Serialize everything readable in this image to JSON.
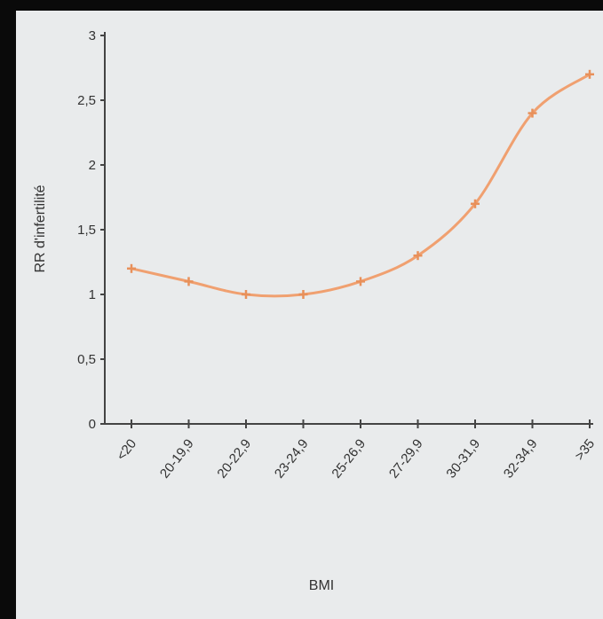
{
  "chart_data": {
    "type": "line",
    "title": "",
    "xlabel": "BMI",
    "ylabel": "RR d'infertilité",
    "categories": [
      "<20",
      "20-19,9",
      "20-22,9",
      "23-24,9",
      "25-26,9",
      "27-29,9",
      "30-31,9",
      "32-34,9",
      ">35"
    ],
    "series": [
      {
        "values": [
          1.2,
          1.1,
          1.0,
          1.0,
          1.1,
          1.3,
          1.7,
          2.4,
          2.7
        ]
      }
    ],
    "yticks": [
      "0",
      "0,5",
      "1",
      "1,5",
      "2",
      "2,5",
      "3"
    ],
    "ylim": [
      0,
      3
    ],
    "grid": false,
    "colors": {
      "line": "#f0a070",
      "marker": "#e8905a",
      "axis": "#444444",
      "background": "#e9ebec"
    }
  }
}
